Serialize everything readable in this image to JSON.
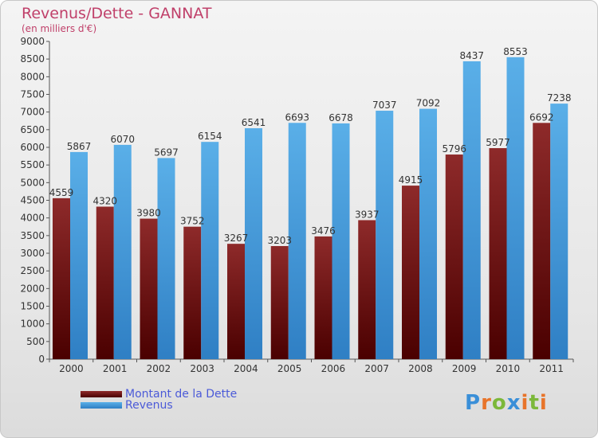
{
  "chart_data": {
    "type": "bar",
    "title": "Revenus/Dette - GANNAT",
    "subtitle": "(en milliers d'€)",
    "categories": [
      "2000",
      "2001",
      "2002",
      "2003",
      "2004",
      "2005",
      "2006",
      "2007",
      "2008",
      "2009",
      "2010",
      "2011"
    ],
    "series": [
      {
        "name": "Montant de la Dette",
        "color": "#8b1a1a",
        "values": [
          4559,
          4320,
          3980,
          3752,
          3267,
          3203,
          3476,
          3937,
          4915,
          5796,
          5977,
          6692
        ]
      },
      {
        "name": "Revenus",
        "color": "#4a9ee0",
        "values": [
          5867,
          6070,
          5697,
          6154,
          6541,
          6693,
          6678,
          7037,
          7092,
          8437,
          8553,
          7238
        ]
      }
    ],
    "ylim": [
      0,
      9000
    ],
    "ytick_step": 500,
    "grid": false,
    "legend_position": "bottom-left"
  },
  "logo": {
    "text": "Proxiti"
  }
}
